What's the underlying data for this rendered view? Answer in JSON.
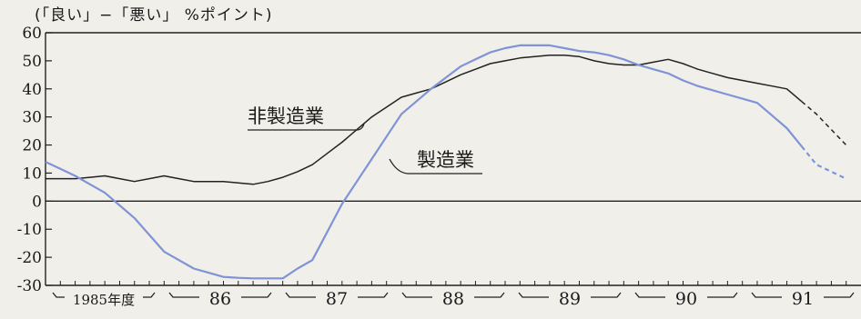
{
  "chart_data": {
    "type": "line",
    "ylabel": "(「良い」−「悪い」 %ポイント)",
    "ylim": [
      -30,
      60
    ],
    "yticks": [
      60,
      50,
      40,
      30,
      20,
      10,
      0,
      -10,
      -20,
      -30
    ],
    "x_groups": [
      "1985年度",
      "86",
      "87",
      "88",
      "89",
      "90",
      "91"
    ],
    "x": [
      0,
      0.5,
      1,
      1.5,
      2,
      2.5,
      3,
      3.5,
      4,
      4.5,
      5,
      5.5,
      6,
      6.5,
      7,
      7.5,
      8,
      8.5,
      9,
      9.5,
      10,
      10.5,
      11,
      11.5,
      12,
      12.5,
      13,
      13.5,
      14,
      14.5,
      15,
      15.5,
      16,
      16.5,
      17,
      17.5,
      18,
      18.5,
      19,
      19.5,
      20,
      20.5,
      21,
      21.5,
      22,
      22.5,
      23,
      23.5,
      24,
      24.5,
      25,
      25.5,
      26,
      26.5,
      27
    ],
    "series": [
      {
        "name": "非製造業",
        "color": "#222222",
        "dashed_from": 25.5,
        "values": [
          8,
          8,
          8,
          8.5,
          9,
          8,
          7,
          8,
          9,
          8,
          7,
          7,
          7,
          6.5,
          6,
          7,
          8.5,
          10.5,
          13,
          17,
          21,
          25.5,
          30,
          33.5,
          37,
          38.5,
          40,
          42.5,
          45,
          47,
          49,
          50,
          51,
          51.5,
          52,
          52,
          51.5,
          50,
          49,
          48.5,
          48.5,
          49.5,
          50.5,
          49,
          47,
          45.5,
          44,
          43,
          42,
          41,
          40,
          35.5,
          31,
          25.5,
          20
        ]
      },
      {
        "name": "製造業",
        "color": "#7f93d6",
        "dashed_from": 25.5,
        "values": [
          14,
          11.5,
          9,
          6,
          3,
          -1.5,
          -6,
          -12,
          -18,
          -21,
          -24,
          -25.5,
          -27,
          -27.3,
          -27.5,
          -27.5,
          -27.5,
          -24,
          -21,
          -11,
          -1,
          7,
          15,
          23,
          31,
          35.5,
          40,
          44,
          48,
          50.5,
          53,
          54.5,
          55.5,
          55.5,
          55.5,
          54.5,
          53.5,
          53,
          52,
          50.5,
          48.5,
          47,
          45.5,
          43,
          41,
          39.5,
          38,
          36.5,
          35,
          30.5,
          26,
          19.5,
          13,
          10.5,
          8
        ]
      }
    ],
    "annotations": [
      "非製造業",
      "製造業"
    ]
  }
}
